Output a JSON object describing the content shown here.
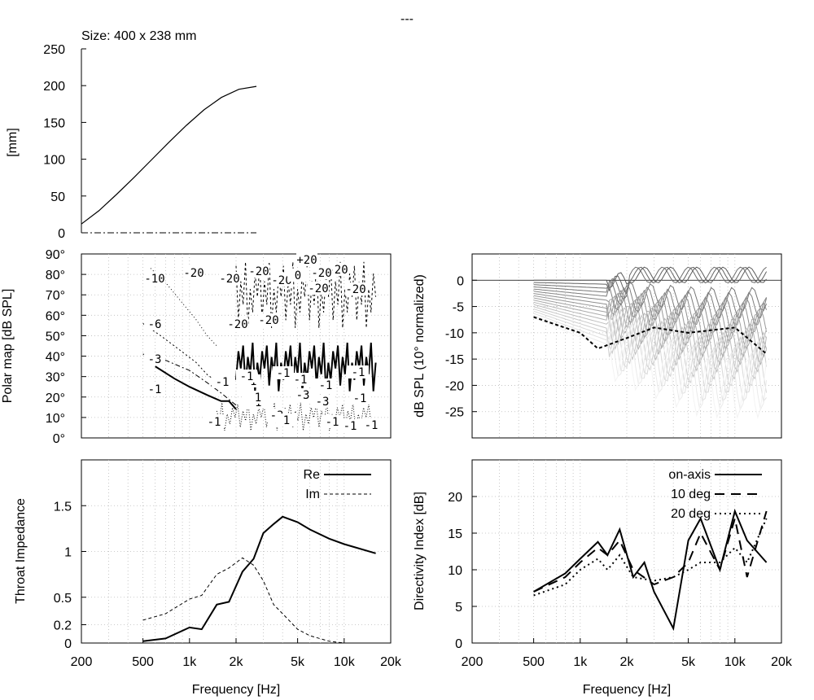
{
  "title": "---",
  "panels": {
    "profile": {
      "subtitle": "Size: 400 x 238 mm",
      "ylabel": "[mm]",
      "yticks": [
        "0",
        "50",
        "100",
        "150",
        "200",
        "250"
      ]
    },
    "polar": {
      "ylabel": "Polar map [dB SPL]",
      "yticks": [
        "0°",
        "10°",
        "20°",
        "30°",
        "40°",
        "50°",
        "60°",
        "70°",
        "80°",
        "90°"
      ],
      "contour_labels": [
        "-1",
        "-3",
        "-6",
        "-10",
        "-20",
        "-20",
        "-20",
        "-20",
        "-20",
        "-20",
        "-20",
        "+20",
        "0",
        "-20",
        "-1",
        "-1",
        "-1",
        "-1",
        "-1",
        "-1",
        "-1",
        "-3",
        "-3",
        "-1",
        "-1",
        "-1",
        "-1",
        "-1",
        "-1",
        "1",
        "-20",
        "-20",
        "-3",
        "1"
      ]
    },
    "spl": {
      "ylabel": "dB SPL (10° normalized)",
      "yticks": [
        "-25",
        "-20",
        "-15",
        "-10",
        "-5",
        "0"
      ]
    },
    "impedance": {
      "ylabel": "Throat Impedance",
      "xlabel": "Frequency [Hz]",
      "yticks": [
        "0",
        "0.2",
        "0.5",
        "1",
        "1.5"
      ],
      "xticks": [
        "200",
        "500",
        "1k",
        "2k",
        "5k",
        "10k",
        "20k"
      ],
      "legend": [
        "Re",
        "Im"
      ]
    },
    "di": {
      "ylabel": "Directivity Index [dB]",
      "xlabel": "Frequency [Hz]",
      "yticks": [
        "0",
        "5",
        "10",
        "15",
        "20"
      ],
      "xticks": [
        "200",
        "500",
        "1k",
        "2k",
        "5k",
        "10k",
        "20k"
      ],
      "legend": [
        "on-axis",
        "10 deg",
        "20 deg"
      ]
    }
  },
  "chart_data": [
    {
      "type": "line",
      "title": "Size: 400 x 238 mm",
      "ylabel": "[mm]",
      "ylim": [
        0,
        250
      ],
      "series": [
        {
          "x": [
            0,
            0.1,
            0.2,
            0.3,
            0.4,
            0.5,
            0.6,
            0.7,
            0.8,
            0.9,
            1.0
          ],
          "values": [
            12,
            30,
            52,
            75,
            99,
            123,
            146,
            167,
            184,
            195,
            199
          ]
        }
      ]
    },
    {
      "type": "heatmap",
      "ylabel": "Polar map [dB SPL]",
      "xscale": "log",
      "xlim": [
        200,
        20000
      ],
      "ylim": [
        0,
        90
      ],
      "contours": [
        {
          "level": "-1",
          "x": [
            600,
            800,
            1000,
            1300,
            1600,
            1800,
            2000
          ],
          "y": [
            35,
            29,
            25,
            21,
            18,
            18,
            14
          ]
        },
        {
          "level": "-3",
          "x": [
            500,
            700,
            1000,
            1300,
            1600,
            2000
          ],
          "y": [
            41,
            38,
            33,
            27,
            22,
            16
          ]
        },
        {
          "level": "-6",
          "x": [
            500,
            650,
            900,
            1100,
            1300,
            1600
          ],
          "y": [
            56,
            50,
            42,
            37,
            31,
            26
          ]
        },
        {
          "level": "-10",
          "x": [
            560,
            700,
            900,
            1100,
            1300,
            1500
          ],
          "y": [
            83,
            76,
            66,
            58,
            50,
            45
          ]
        }
      ]
    },
    {
      "type": "line",
      "ylabel": "dB SPL (10° normalized)",
      "xscale": "log",
      "xlim": [
        200,
        20000
      ],
      "ylim": [
        -30,
        5
      ],
      "series": [
        {
          "name": "",
          "x": [
            500,
            1000,
            2000,
            3000,
            5000,
            10000,
            16000
          ],
          "values": [
            0,
            0,
            0.5,
            2,
            3,
            2,
            0
          ]
        },
        {
          "name": "",
          "x": [
            500,
            1000,
            1300,
            2000,
            3000,
            5000,
            10000,
            16000
          ],
          "values": [
            -7,
            -10,
            -13,
            -11,
            -9,
            -10,
            -9,
            -14
          ]
        }
      ]
    },
    {
      "type": "line",
      "ylabel": "Throat Impedance",
      "xlabel": "Frequency [Hz]",
      "xscale": "log",
      "xlim": [
        200,
        20000
      ],
      "ylim": [
        0,
        2
      ],
      "series": [
        {
          "name": "Re",
          "x": [
            500,
            700,
            1000,
            1200,
            1500,
            1800,
            2200,
            2600,
            3000,
            3500,
            4000,
            5000,
            6000,
            8000,
            10000,
            16000
          ],
          "values": [
            0.02,
            0.05,
            0.17,
            0.15,
            0.42,
            0.45,
            0.78,
            0.92,
            1.2,
            1.3,
            1.38,
            1.32,
            1.24,
            1.14,
            1.08,
            0.98
          ]
        },
        {
          "name": "Im",
          "x": [
            500,
            700,
            1000,
            1200,
            1500,
            1800,
            2200,
            2600,
            3000,
            3500,
            4000,
            5000,
            6000,
            8000,
            10000
          ],
          "values": [
            0.25,
            0.32,
            0.48,
            0.52,
            0.75,
            0.82,
            0.93,
            0.85,
            0.68,
            0.42,
            0.32,
            0.15,
            0.08,
            0.02,
            0.0
          ]
        }
      ]
    },
    {
      "type": "line",
      "ylabel": "Directivity Index [dB]",
      "xlabel": "Frequency [Hz]",
      "xscale": "log",
      "xlim": [
        200,
        20000
      ],
      "ylim": [
        0,
        25
      ],
      "series": [
        {
          "name": "on-axis",
          "x": [
            500,
            800,
            1000,
            1300,
            1500,
            1800,
            2200,
            2600,
            3000,
            4000,
            5000,
            6000,
            8000,
            10000,
            12000,
            16000
          ],
          "values": [
            7,
            9.5,
            11.5,
            13.8,
            12,
            15.5,
            9,
            11,
            7,
            2,
            14,
            17,
            10,
            18,
            14,
            11
          ]
        },
        {
          "name": "10 deg",
          "x": [
            500,
            800,
            1000,
            1300,
            1500,
            1800,
            2200,
            3000,
            4000,
            5000,
            6000,
            8000,
            10000,
            12000,
            16000
          ],
          "values": [
            7,
            9,
            11,
            13,
            12,
            14,
            10,
            8,
            9,
            11,
            15,
            10,
            17,
            9,
            18
          ]
        },
        {
          "name": "20 deg",
          "x": [
            500,
            800,
            1000,
            1300,
            1500,
            1800,
            2200,
            3000,
            4000,
            5000,
            6000,
            8000,
            10000,
            12000,
            16000
          ],
          "values": [
            6.5,
            8,
            10,
            11.5,
            10,
            12,
            9,
            8.5,
            9,
            10,
            11,
            11,
            13,
            11,
            17
          ]
        }
      ]
    }
  ]
}
